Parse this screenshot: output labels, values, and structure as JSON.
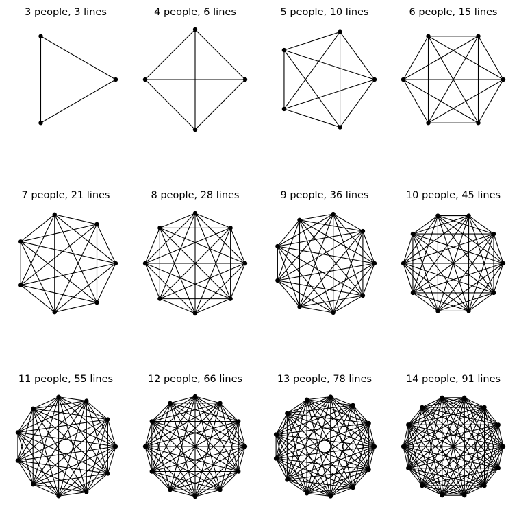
{
  "style": {
    "edge_color": "#000000",
    "node_color": "#000000",
    "background": "#ffffff"
  },
  "panels": [
    {
      "people": 3,
      "lines": 3,
      "title": "3 people, 3 lines"
    },
    {
      "people": 4,
      "lines": 6,
      "title": "4 people, 6 lines"
    },
    {
      "people": 5,
      "lines": 10,
      "title": "5 people, 10 lines"
    },
    {
      "people": 6,
      "lines": 15,
      "title": "6 people, 15 lines"
    },
    {
      "people": 7,
      "lines": 21,
      "title": "7 people, 21 lines"
    },
    {
      "people": 8,
      "lines": 28,
      "title": "8 people, 28 lines"
    },
    {
      "people": 9,
      "lines": 36,
      "title": "9 people, 36 lines"
    },
    {
      "people": 10,
      "lines": 45,
      "title": "10 people, 45 lines"
    },
    {
      "people": 11,
      "lines": 55,
      "title": "11 people, 55 lines"
    },
    {
      "people": 12,
      "lines": 66,
      "title": "12 people, 66 lines"
    },
    {
      "people": 13,
      "lines": 78,
      "title": "13 people, 78 lines"
    },
    {
      "people": 14,
      "lines": 91,
      "title": "14 people, 91 lines"
    }
  ]
}
